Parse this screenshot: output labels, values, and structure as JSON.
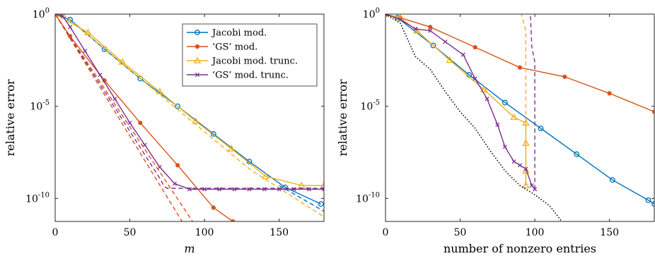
{
  "chart_data": [
    {
      "type": "line",
      "xlabel": "m",
      "ylabel": "relative error",
      "xlim": [
        0,
        180
      ],
      "ylim_log10": [
        -11.25,
        0
      ],
      "yscale": "log",
      "xticks": [
        "0",
        "50",
        "100",
        "150"
      ],
      "yticks": [
        {
          "base": "10",
          "exp": "0",
          "log10": 0
        },
        {
          "base": "10",
          "exp": "-5",
          "log10": -5
        },
        {
          "base": "10",
          "exp": "-10",
          "log10": -10
        }
      ],
      "legend_position": "top-right",
      "legend": [
        {
          "label": "Jacobi mod.",
          "color": "#0072BD",
          "marker": "circle"
        },
        {
          "label": "‘GS’ mod.",
          "color": "#D95319",
          "marker": "dot"
        },
        {
          "label": "Jacobi mod. trunc.",
          "color": "#EDB120",
          "marker": "triangle"
        },
        {
          "label": "‘GS’ mod. trunc.",
          "color": "#7E2F8E",
          "marker": "x"
        }
      ],
      "series": [
        {
          "color": "#0072BD",
          "style": "solid",
          "marker": "circle",
          "points": [
            [
              0,
              0
            ],
            [
              10,
              -0.3
            ],
            [
              33,
              -1.9
            ],
            [
              57,
              -3.5
            ],
            [
              82,
              -5.0
            ],
            [
              106,
              -6.5
            ],
            [
              130,
              -8.0
            ],
            [
              154,
              -9.4
            ],
            [
              178,
              -10.3
            ]
          ]
        },
        {
          "color": "#D95319",
          "style": "solid",
          "marker": "dot",
          "points": [
            [
              0,
              0
            ],
            [
              10,
              -1.2
            ],
            [
              33,
              -3.6
            ],
            [
              57,
              -5.9
            ],
            [
              82,
              -8.2
            ],
            [
              106,
              -10.5
            ],
            [
              119,
              -11.25
            ]
          ]
        },
        {
          "color": "#EDB120",
          "style": "solid",
          "marker": "triangle",
          "points": [
            [
              0,
              0
            ],
            [
              22,
              -1.0
            ],
            [
              45,
              -2.6
            ],
            [
              70,
              -4.2
            ],
            [
              94,
              -5.8
            ],
            [
              118,
              -7.3
            ],
            [
              141,
              -8.8
            ],
            [
              165,
              -9.3
            ],
            [
              180,
              -9.3
            ]
          ]
        },
        {
          "color": "#7E2F8E",
          "style": "solid",
          "marker": "x",
          "points": [
            [
              0,
              0
            ],
            [
              5,
              -0.1
            ],
            [
              10,
              -0.7
            ],
            [
              20,
              -2.0
            ],
            [
              30,
              -3.3
            ],
            [
              40,
              -4.6
            ],
            [
              50,
              -5.9
            ],
            [
              60,
              -7.1
            ],
            [
              70,
              -8.3
            ],
            [
              80,
              -9.2
            ],
            [
              90,
              -9.5
            ],
            [
              100,
              -9.5
            ],
            [
              110,
              -9.5
            ],
            [
              120,
              -9.5
            ],
            [
              130,
              -9.5
            ],
            [
              140,
              -9.5
            ],
            [
              150,
              -9.5
            ],
            [
              160,
              -9.5
            ],
            [
              170,
              -9.5
            ],
            [
              180,
              -9.5
            ]
          ]
        },
        {
          "color": "#0072BD",
          "style": "dashed",
          "marker": "none",
          "points": [
            [
              150,
              -9.3
            ],
            [
              180,
              -10.7
            ]
          ]
        },
        {
          "color": "#D95319",
          "style": "dashed",
          "marker": "none",
          "points": [
            [
              0,
              0
            ],
            [
              92,
              -11.25
            ]
          ]
        },
        {
          "color": "#EDB120",
          "style": "dashed",
          "marker": "none",
          "points": [
            [
              5,
              0
            ],
            [
              130,
              -8.4
            ],
            [
              180,
              -11.0
            ]
          ]
        },
        {
          "color": "#7E2F8E",
          "style": "dashed",
          "marker": "none",
          "points": [
            [
              0,
              0
            ],
            [
              70,
              -8.9
            ],
            [
              73,
              -9.35
            ],
            [
              75,
              -9.45
            ],
            [
              180,
              -9.45
            ]
          ]
        },
        {
          "color": "#D95319",
          "style": "dashed",
          "marker": "none",
          "points": [
            [
              0,
              0
            ],
            [
              85,
              -11.25
            ]
          ]
        }
      ]
    },
    {
      "type": "line",
      "xlabel": "number of nonzero entries",
      "ylabel": "relative error",
      "xlim": [
        0,
        180
      ],
      "ylim_log10": [
        -11.25,
        0
      ],
      "yscale": "log",
      "xticks": [
        "0",
        "50",
        "100",
        "150"
      ],
      "yticks": [
        {
          "base": "10",
          "exp": "0",
          "log10": 0
        },
        {
          "base": "10",
          "exp": "-5",
          "log10": -5
        },
        {
          "base": "10",
          "exp": "-10",
          "log10": -10
        }
      ],
      "series": [
        {
          "color": "#0072BD",
          "style": "solid",
          "marker": "circle",
          "points": [
            [
              0,
              0
            ],
            [
              8,
              -0.2
            ],
            [
              32,
              -1.7
            ],
            [
              56,
              -3.3
            ],
            [
              80,
              -4.8
            ],
            [
              104,
              -6.2
            ],
            [
              128,
              -7.6
            ],
            [
              152,
              -9.0
            ],
            [
              176,
              -10.1
            ],
            [
              180,
              -10.3
            ]
          ]
        },
        {
          "color": "#D95319",
          "style": "solid",
          "marker": "dot",
          "points": [
            [
              0,
              0
            ],
            [
              10,
              -0.2
            ],
            [
              30,
              -0.7
            ],
            [
              60,
              -1.8
            ],
            [
              90,
              -2.9
            ],
            [
              120,
              -3.4
            ],
            [
              150,
              -4.3
            ],
            [
              180,
              -5.3
            ]
          ]
        },
        {
          "color": "#EDB120",
          "style": "solid",
          "marker": "triangle",
          "points": [
            [
              0,
              0
            ],
            [
              10,
              -0.2
            ],
            [
              21,
              -0.9
            ],
            [
              43,
              -2.5
            ],
            [
              66,
              -4.1
            ],
            [
              86,
              -5.6
            ],
            [
              94,
              -5.9
            ],
            [
              94,
              -7.0
            ],
            [
              94,
              -8.5
            ],
            [
              94,
              -9.3
            ]
          ]
        },
        {
          "color": "#EDB120",
          "style": "dashed",
          "marker": "none",
          "points": [
            [
              94,
              -9.3
            ],
            [
              94,
              -0.9
            ],
            [
              92,
              -0.3
            ],
            [
              91,
              0
            ]
          ]
        },
        {
          "color": "#7E2F8E",
          "style": "solid",
          "marker": "x",
          "points": [
            [
              0,
              0
            ],
            [
              10,
              -0.3
            ],
            [
              20,
              -0.8
            ],
            [
              30,
              -0.9
            ],
            [
              40,
              -1.5
            ],
            [
              52,
              -2.2
            ],
            [
              60,
              -3.5
            ],
            [
              68,
              -4.6
            ],
            [
              75,
              -6.0
            ],
            [
              80,
              -7.2
            ],
            [
              86,
              -8.0
            ],
            [
              90,
              -8.2
            ],
            [
              94,
              -8.4
            ],
            [
              98,
              -9.3
            ],
            [
              100,
              -9.5
            ]
          ]
        },
        {
          "color": "#7E2F8E",
          "style": "dashed",
          "marker": "none",
          "points": [
            [
              100,
              -9.5
            ],
            [
              100,
              -2.6
            ],
            [
              98,
              -1.8
            ],
            [
              97,
              0
            ]
          ]
        },
        {
          "color": "#000000",
          "style": "dotted",
          "marker": "none",
          "points": [
            [
              0,
              0
            ],
            [
              10,
              -0.5
            ],
            [
              20,
              -2.3
            ],
            [
              30,
              -3.0
            ],
            [
              40,
              -4.2
            ],
            [
              50,
              -5.3
            ],
            [
              60,
              -6.2
            ],
            [
              70,
              -7.4
            ],
            [
              80,
              -8.5
            ],
            [
              90,
              -9.3
            ],
            [
              100,
              -9.8
            ],
            [
              110,
              -10.4
            ],
            [
              118,
              -11.25
            ]
          ]
        }
      ]
    }
  ]
}
